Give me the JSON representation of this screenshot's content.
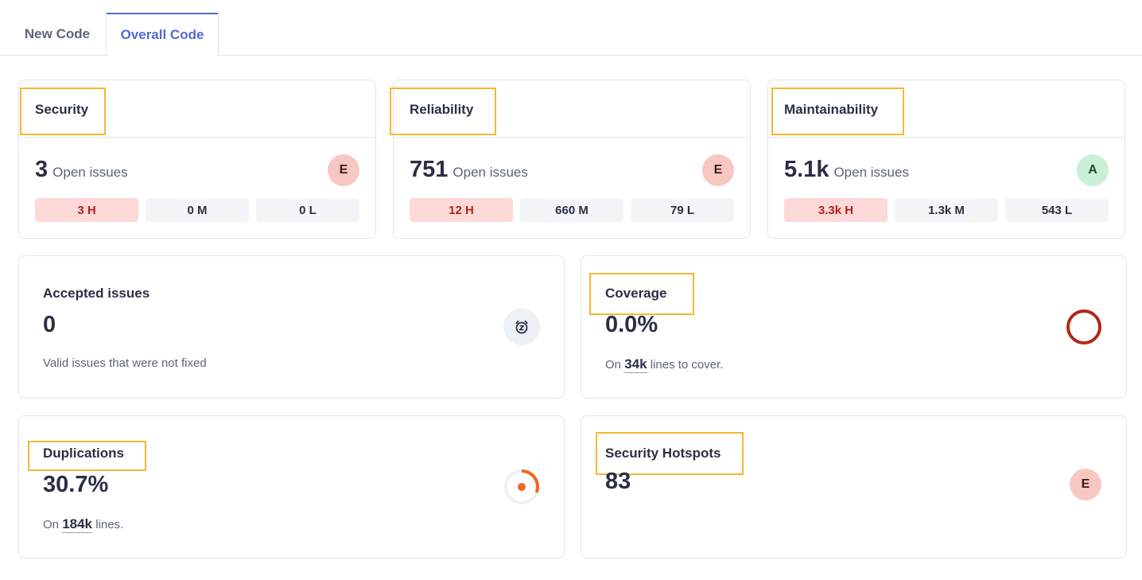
{
  "tabs": [
    {
      "label": "New Code",
      "active": false
    },
    {
      "label": "Overall Code",
      "active": true
    }
  ],
  "security": {
    "title": "Security",
    "count": "3",
    "open_label": "Open issues",
    "rating": "E",
    "high": "3 H",
    "medium": "0 M",
    "low": "0 L"
  },
  "reliability": {
    "title": "Reliability",
    "count": "751",
    "open_label": "Open issues",
    "rating": "E",
    "high": "12 H",
    "medium": "660 M",
    "low": "79 L"
  },
  "maintainability": {
    "title": "Maintainability",
    "count": "5.1k",
    "open_label": "Open issues",
    "rating": "A",
    "high": "3.3k H",
    "medium": "1.3k M",
    "low": "543 L"
  },
  "accepted": {
    "title": "Accepted issues",
    "value": "0",
    "description": "Valid issues that were not fixed",
    "icon": "snooze-clock-icon"
  },
  "coverage": {
    "title": "Coverage",
    "value": "0.0%",
    "desc_prefix": "On",
    "lines": "34k",
    "desc_suffix": "lines to cover.",
    "percent": 0
  },
  "duplications": {
    "title": "Duplications",
    "value": "30.7%",
    "desc_prefix": "On",
    "lines": "184k",
    "desc_suffix": "lines.",
    "percent": 30.7
  },
  "hotspots": {
    "title": "Security Hotspots",
    "value": "83",
    "rating": "E"
  },
  "colors": {
    "accent": "#5469d4",
    "highlight": "#f7b731",
    "danger": "#b42318",
    "coverage_ring": "#b0281a",
    "duplication": "#f2661f"
  }
}
